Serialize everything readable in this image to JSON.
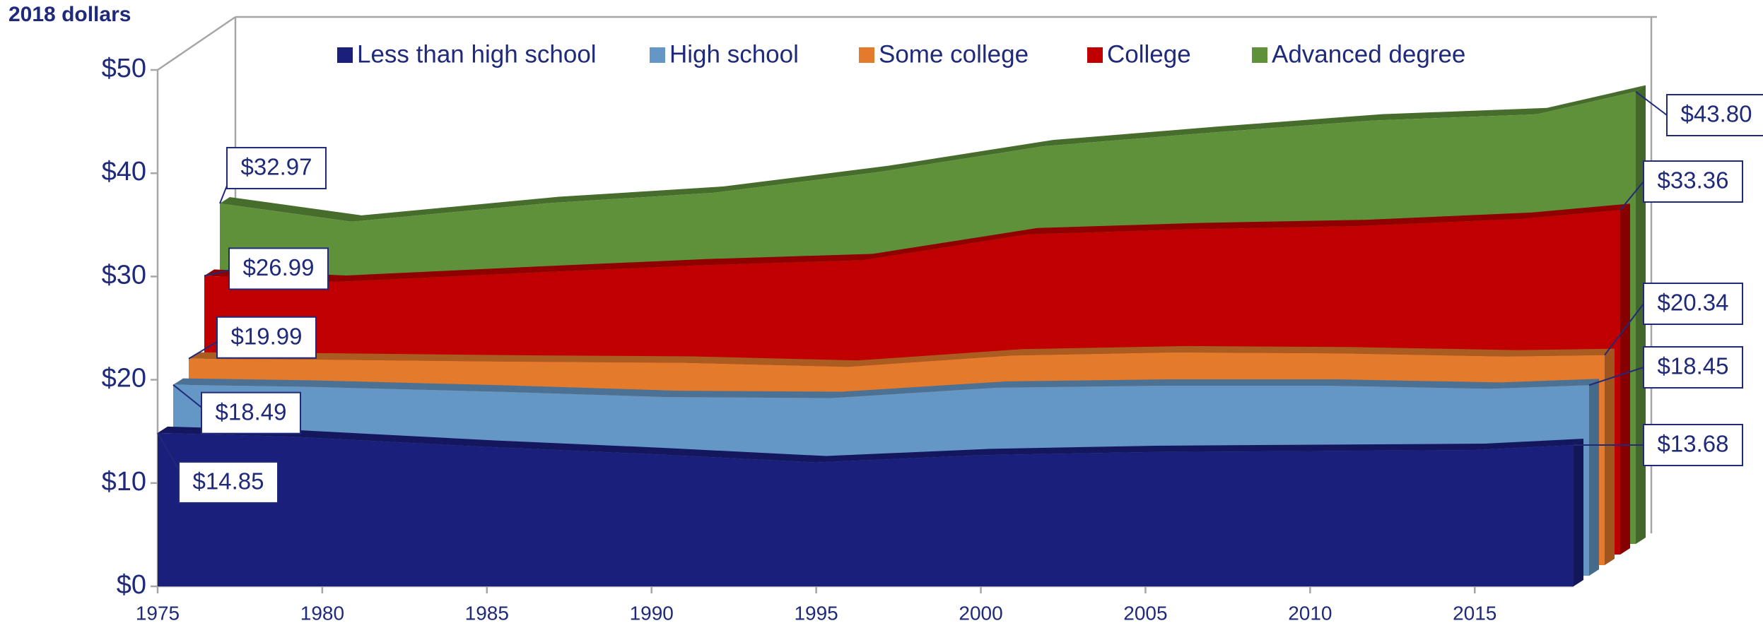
{
  "chart_data": {
    "type": "area3d",
    "y_axis_label": "2018 dollars",
    "x": [
      1975,
      1979,
      1985,
      1990,
      1995,
      2000,
      2005,
      2010,
      2015,
      2018
    ],
    "xlim": [
      1975,
      2018
    ],
    "xticks": [
      1975,
      1980,
      1985,
      1990,
      1995,
      2000,
      2005,
      2010,
      2015
    ],
    "ylim": [
      0,
      50
    ],
    "yticks": [
      {
        "value": 0,
        "label": "$0"
      },
      {
        "value": 10,
        "label": "$10"
      },
      {
        "value": 20,
        "label": "$20"
      },
      {
        "value": 30,
        "label": "$30"
      },
      {
        "value": 40,
        "label": "$40"
      },
      {
        "value": 50,
        "label": "$50"
      }
    ],
    "legend": "top",
    "series": [
      {
        "name": "Less than high school",
        "color": "#1b1f7c",
        "values": [
          14.85,
          14.5,
          13.5,
          12.8,
          12.0,
          12.7,
          13.0,
          13.1,
          13.2,
          13.68
        ],
        "value_labels": [
          "$14.85",
          null,
          null,
          null,
          null,
          null,
          null,
          null,
          null,
          "$13.68"
        ]
      },
      {
        "name": "High school",
        "color": "#6497c5",
        "values": [
          18.49,
          18.3,
          17.8,
          17.3,
          17.2,
          18.2,
          18.4,
          18.4,
          18.1,
          18.45
        ],
        "value_labels": [
          "$18.49",
          null,
          null,
          null,
          null,
          null,
          null,
          null,
          null,
          "$18.45"
        ]
      },
      {
        "name": "Some college",
        "color": "#e47a2c",
        "values": [
          19.99,
          19.9,
          19.7,
          19.6,
          19.2,
          20.3,
          20.6,
          20.5,
          20.2,
          20.34
        ],
        "value_labels": [
          "$19.99",
          null,
          null,
          null,
          null,
          null,
          null,
          null,
          null,
          "$20.34"
        ]
      },
      {
        "name": "College",
        "color": "#c00000",
        "values": [
          26.99,
          26.4,
          27.3,
          28.0,
          28.5,
          31.0,
          31.5,
          31.8,
          32.5,
          33.36
        ],
        "value_labels": [
          "$26.99",
          null,
          null,
          null,
          null,
          null,
          null,
          null,
          null,
          "$33.36"
        ]
      },
      {
        "name": "Advanced degree",
        "color": "#5f913b",
        "values": [
          32.97,
          31.2,
          33.0,
          34.0,
          36.0,
          38.5,
          39.8,
          41.0,
          41.6,
          43.8
        ],
        "value_labels": [
          "$32.97",
          null,
          null,
          null,
          null,
          null,
          null,
          null,
          null,
          "$43.80"
        ]
      }
    ]
  }
}
